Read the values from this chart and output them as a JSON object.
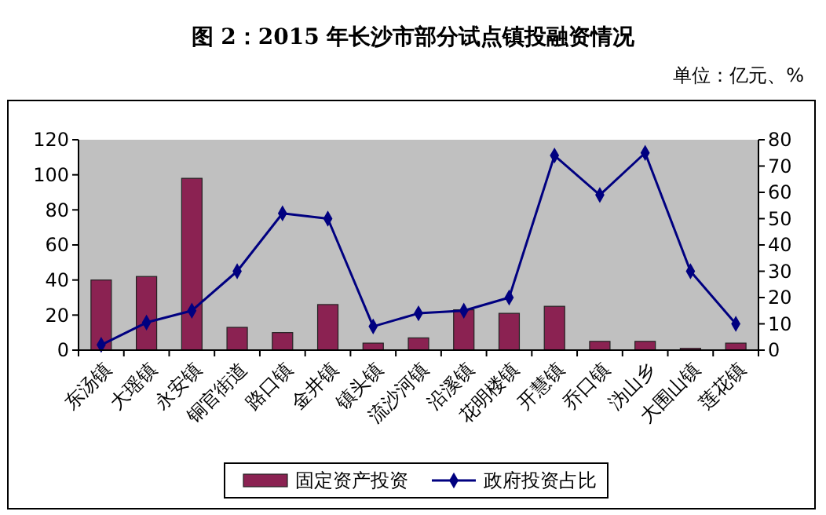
{
  "chart_data": {
    "type": "bar",
    "title": "图 2：2015 年长沙市部分试点镇投融资情况",
    "subtitle": "单位：亿元、%",
    "categories": [
      "东汤镇",
      "大瑶镇",
      "永安镇",
      "铜官街道",
      "路口镇",
      "金井镇",
      "镇头镇",
      "流沙河镇",
      "沿溪镇",
      "花明楼镇",
      "开慧镇",
      "乔口镇",
      "沩山乡",
      "大围山镇",
      "莲花镇"
    ],
    "series": [
      {
        "name": "固定资产投资",
        "color": "#8b2252",
        "values": [
          40,
          42,
          98,
          13,
          10,
          26,
          4,
          7,
          23,
          21,
          25,
          5,
          5,
          1,
          4
        ]
      },
      {
        "name": "政府投资占比",
        "type": "line",
        "axis": "y2",
        "color": "#000080",
        "marker": "diamond",
        "values": [
          2,
          10.5,
          15,
          30,
          52,
          50,
          9,
          14,
          15,
          20,
          74,
          59,
          75,
          30,
          10
        ]
      }
    ],
    "ylim": [
      0,
      120
    ],
    "yticks": [
      0,
      20,
      40,
      60,
      80,
      100,
      120
    ],
    "y2lim": [
      0,
      80
    ],
    "y2ticks": [
      0,
      10,
      20,
      30,
      40,
      50,
      60,
      70,
      80
    ],
    "grid": false,
    "legend": "bottom"
  }
}
